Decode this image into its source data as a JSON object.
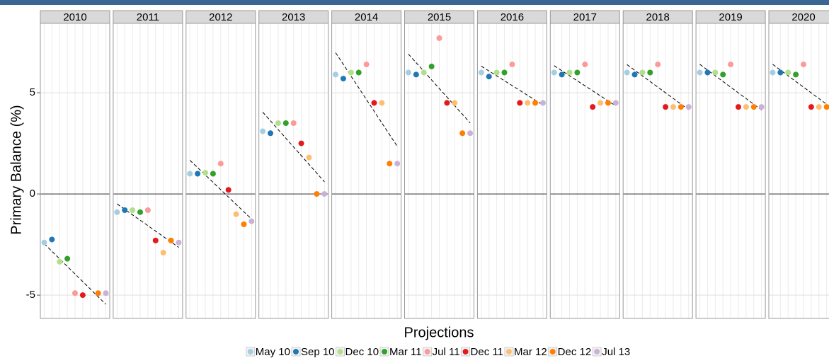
{
  "chart_data": {
    "type": "scatter",
    "facets": [
      "2010",
      "2011",
      "2012",
      "2013",
      "2014",
      "2015",
      "2016",
      "2017",
      "2018",
      "2019",
      "2020"
    ],
    "x_label": "Projections",
    "y_label": "Primary Balance (%)",
    "ylim": [
      -6.15,
      8.43
    ],
    "yticks": [
      -5,
      0,
      5
    ],
    "grid": true,
    "trend_lines": true,
    "legend": "bottom",
    "series": [
      {
        "name": "May 10",
        "color": "#a6cee3",
        "values": [
          -2.4,
          -0.9,
          1.0,
          3.1,
          5.9,
          6.0,
          6.0,
          6.0,
          6.0,
          6.0,
          6.0
        ]
      },
      {
        "name": "Sep 10",
        "color": "#1f78b4",
        "values": [
          -2.25,
          -0.8,
          1.0,
          3.0,
          5.7,
          5.9,
          5.8,
          5.9,
          5.9,
          6.0,
          6.0
        ]
      },
      {
        "name": "Dec 10",
        "color": "#b2df8a",
        "values": [
          -3.35,
          -0.8,
          1.05,
          3.5,
          6.0,
          6.0,
          6.0,
          6.0,
          6.0,
          6.0,
          6.0
        ]
      },
      {
        "name": "Mar 11",
        "color": "#33a02c",
        "values": [
          -3.2,
          -0.9,
          1.0,
          3.5,
          6.0,
          6.3,
          6.0,
          6.0,
          6.0,
          5.9,
          5.9
        ]
      },
      {
        "name": "Jul 11",
        "color": "#fb9a99",
        "values": [
          -4.9,
          -0.8,
          1.5,
          3.5,
          6.4,
          7.7,
          6.4,
          6.4,
          6.4,
          6.4,
          6.4
        ]
      },
      {
        "name": "Dec 11",
        "color": "#e31a1c",
        "values": [
          -5.0,
          -2.3,
          0.2,
          2.5,
          4.5,
          4.5,
          4.5,
          4.3,
          4.3,
          4.3,
          4.3
        ]
      },
      {
        "name": "Mar 12",
        "color": "#fdbf6f",
        "values": [
          null,
          -2.9,
          -1.0,
          1.8,
          4.5,
          4.5,
          4.5,
          4.5,
          4.3,
          4.3,
          4.3
        ]
      },
      {
        "name": "Dec 12",
        "color": "#ff7f00",
        "values": [
          -4.9,
          -2.3,
          -1.5,
          0.0,
          1.5,
          3.0,
          4.5,
          4.5,
          4.3,
          4.3,
          4.3
        ]
      },
      {
        "name": "Jul 13",
        "color": "#cab2d6",
        "values": [
          -4.9,
          -2.4,
          -1.35,
          0.0,
          1.5,
          3.0,
          4.5,
          4.5,
          4.3,
          4.3,
          4.3
        ]
      }
    ]
  }
}
